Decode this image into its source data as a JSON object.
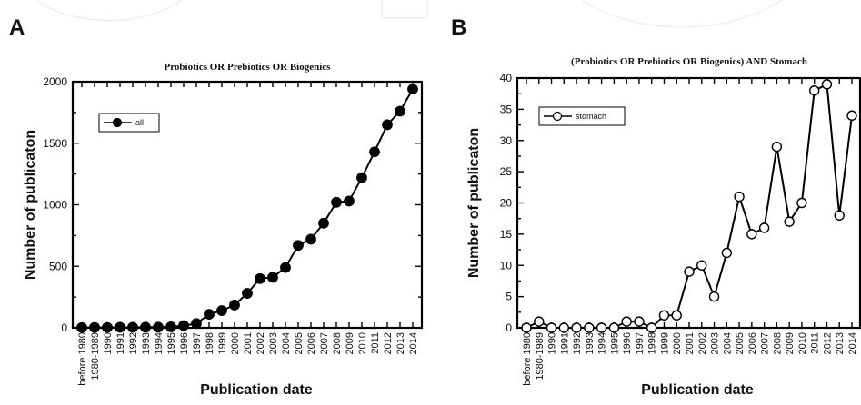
{
  "chart_data": [
    {
      "panel": "A",
      "type": "line",
      "title": "Probiotics OR Prebiotics OR Biogenics",
      "xlabel": "Publication date",
      "ylabel": "Number of publicaton",
      "categories": [
        "before 1980",
        "1980-1989",
        "1990",
        "1991",
        "1992",
        "1993",
        "1994",
        "1995",
        "1996",
        "1997",
        "1998",
        "1999",
        "2000",
        "2001",
        "2002",
        "2003",
        "2004",
        "2005",
        "2006",
        "2007",
        "2008",
        "2009",
        "2010",
        "2011",
        "2012",
        "2013",
        "2014"
      ],
      "series": [
        {
          "name": "all",
          "marker": "filled-circle",
          "values": [
            2,
            3,
            3,
            4,
            4,
            5,
            5,
            8,
            18,
            35,
            110,
            140,
            185,
            280,
            400,
            410,
            490,
            670,
            720,
            850,
            1020,
            1030,
            1220,
            1430,
            1650,
            1760,
            1940
          ]
        }
      ],
      "ylim": [
        0,
        2000
      ],
      "yticks": [
        0,
        500,
        1000,
        1500,
        2000
      ],
      "legend": "top-left",
      "grid": false
    },
    {
      "panel": "B",
      "type": "line",
      "title": "(Probiotics OR Prebiotics OR Biogenics) AND Stomach",
      "xlabel": "Publication date",
      "ylabel": "Number of publicaton",
      "categories": [
        "before 1980",
        "1980-1989",
        "1990",
        "1991",
        "1992",
        "1993",
        "1994",
        "1995",
        "1996",
        "1997",
        "1998",
        "1999",
        "2000",
        "2001",
        "2002",
        "2003",
        "2004",
        "2005",
        "2006",
        "2007",
        "2008",
        "2009",
        "2010",
        "2011",
        "2012",
        "2013",
        "2014"
      ],
      "series": [
        {
          "name": "stomach",
          "marker": "open-circle",
          "values": [
            0,
            1,
            0,
            0,
            0,
            0,
            0,
            0,
            1,
            1,
            0,
            2,
            2,
            9,
            10,
            5,
            12,
            21,
            15,
            16,
            29,
            17,
            20,
            38,
            39,
            18,
            34
          ]
        }
      ],
      "ylim": [
        0,
        40
      ],
      "yticks": [
        0,
        5,
        10,
        15,
        20,
        25,
        30,
        35,
        40
      ],
      "legend": "top-left",
      "grid": false
    }
  ]
}
